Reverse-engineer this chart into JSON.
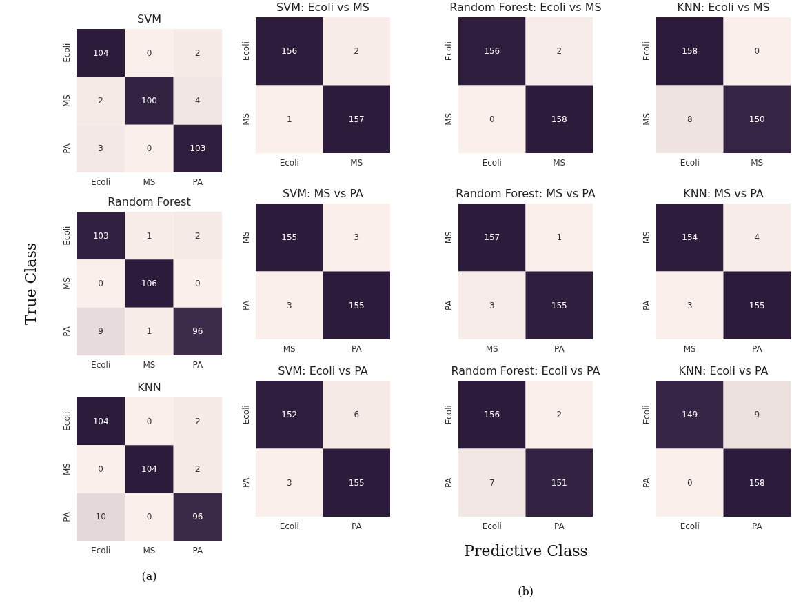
{
  "chart_data": [
    {
      "type": "heatmap",
      "title": "SVM",
      "data_labels": true,
      "categories": [
        "Ecoli",
        "MS",
        "PA"
      ],
      "y_categories": [
        "Ecoli",
        "MS",
        "PA"
      ],
      "cells": [
        [
          104,
          0,
          2
        ],
        [
          2,
          100,
          4
        ],
        [
          3,
          0,
          103
        ]
      ]
    },
    {
      "type": "heatmap",
      "title": "Random Forest",
      "ylabel": "True Class",
      "data_labels": true,
      "categories": [
        "Ecoli",
        "MS",
        "PA"
      ],
      "y_categories": [
        "Ecoli",
        "MS",
        "PA"
      ],
      "cells": [
        [
          103,
          1,
          2
        ],
        [
          0,
          106,
          0
        ],
        [
          9,
          1,
          96
        ]
      ]
    },
    {
      "type": "heatmap",
      "title": "KNN",
      "annotations": [
        "(a)"
      ],
      "data_labels": true,
      "categories": [
        "Ecoli",
        "MS",
        "PA"
      ],
      "y_categories": [
        "Ecoli",
        "MS",
        "PA"
      ],
      "cells": [
        [
          104,
          0,
          2
        ],
        [
          0,
          104,
          2
        ],
        [
          10,
          0,
          96
        ]
      ]
    },
    {
      "type": "heatmap",
      "title": "SVM: Ecoli vs MS",
      "data_labels": true,
      "categories": [
        "Ecoli",
        "MS"
      ],
      "y_categories": [
        "Ecoli",
        "MS"
      ],
      "cells": [
        [
          156,
          2
        ],
        [
          1,
          157
        ]
      ]
    },
    {
      "type": "heatmap",
      "title": "Random Forest: Ecoli vs MS",
      "data_labels": true,
      "categories": [
        "Ecoli",
        "MS"
      ],
      "y_categories": [
        "Ecoli",
        "MS"
      ],
      "cells": [
        [
          156,
          2
        ],
        [
          0,
          158
        ]
      ]
    },
    {
      "type": "heatmap",
      "title": "KNN: Ecoli vs MS",
      "data_labels": true,
      "categories": [
        "Ecoli",
        "MS"
      ],
      "y_categories": [
        "Ecoli",
        "MS"
      ],
      "cells": [
        [
          158,
          0
        ],
        [
          8,
          150
        ]
      ]
    },
    {
      "type": "heatmap",
      "title": "SVM: MS vs PA",
      "data_labels": true,
      "categories": [
        "MS",
        "PA"
      ],
      "y_categories": [
        "MS",
        "PA"
      ],
      "cells": [
        [
          155,
          3
        ],
        [
          3,
          155
        ]
      ]
    },
    {
      "type": "heatmap",
      "title": "Random Forest: MS vs PA",
      "data_labels": true,
      "categories": [
        "MS",
        "PA"
      ],
      "y_categories": [
        "MS",
        "PA"
      ],
      "cells": [
        [
          157,
          1
        ],
        [
          3,
          155
        ]
      ]
    },
    {
      "type": "heatmap",
      "title": "KNN: MS vs PA",
      "data_labels": true,
      "categories": [
        "MS",
        "PA"
      ],
      "y_categories": [
        "MS",
        "PA"
      ],
      "cells": [
        [
          154,
          4
        ],
        [
          3,
          155
        ]
      ]
    },
    {
      "type": "heatmap",
      "title": "SVM: Ecoli vs PA",
      "data_labels": true,
      "categories": [
        "Ecoli",
        "PA"
      ],
      "y_categories": [
        "Ecoli",
        "PA"
      ],
      "cells": [
        [
          152,
          6
        ],
        [
          3,
          155
        ]
      ]
    },
    {
      "type": "heatmap",
      "title": "Random Forest: Ecoli vs PA",
      "xlabel": "Predictive Class",
      "annotations": [
        "(b)"
      ],
      "data_labels": true,
      "categories": [
        "Ecoli",
        "PA"
      ],
      "y_categories": [
        "Ecoli",
        "PA"
      ],
      "cells": [
        [
          156,
          2
        ],
        [
          7,
          151
        ]
      ]
    },
    {
      "type": "heatmap",
      "title": "KNN: Ecoli vs PA",
      "data_labels": true,
      "categories": [
        "Ecoli",
        "PA"
      ],
      "y_categories": [
        "Ecoli",
        "PA"
      ],
      "cells": [
        [
          149,
          9
        ],
        [
          0,
          158
        ]
      ]
    }
  ]
}
